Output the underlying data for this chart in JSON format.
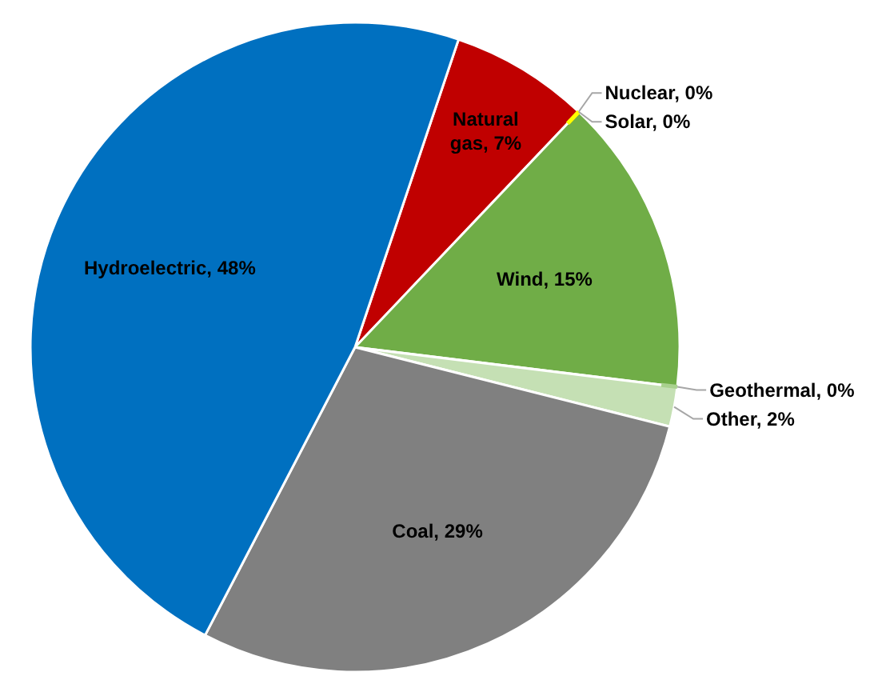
{
  "chart_data": {
    "type": "pie",
    "categories": [
      "Natural gas",
      "Nuclear",
      "Solar",
      "Wind",
      "Geothermal",
      "Other",
      "Coal",
      "Hydroelectric"
    ],
    "values": [
      7,
      0,
      0,
      15,
      0,
      2,
      29,
      48
    ],
    "value_labels": [
      "7%",
      "0%",
      "0%",
      "15%",
      "0%",
      "2%",
      "29%",
      "48%"
    ],
    "colors": [
      "#c00000",
      "#ffc000",
      "#ffff00",
      "#70ad47",
      "#a9d18e",
      "#c5e0b4",
      "#808080",
      "#0070c0"
    ]
  }
}
